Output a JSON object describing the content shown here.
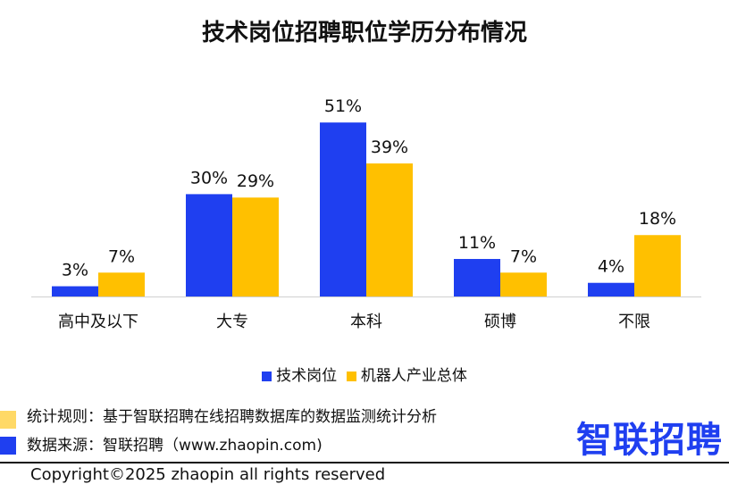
{
  "chart_data": {
    "type": "bar",
    "title": "技术岗位招聘职位学历分布情况",
    "categories": [
      "高中及以下",
      "大专",
      "本科",
      "硕博",
      "不限"
    ],
    "series": [
      {
        "name": "技术岗位",
        "values": [
          3,
          30,
          51,
          11,
          4
        ],
        "color": "#1f3ff0"
      },
      {
        "name": "机器人产业总体",
        "values": [
          7,
          29,
          39,
          7,
          18
        ],
        "color": "#ffc000"
      }
    ],
    "value_format": "percent",
    "ylim": [
      0,
      55
    ],
    "grid": false,
    "legend": "bottom"
  },
  "notes": {
    "rule": "统计规则：基于智联招聘在线招聘数据库的数据监测统计分析",
    "source": "数据来源：智联招聘（www.zhaopin.com)",
    "rule_color": "#ffd966",
    "source_color": "#1f3ff0"
  },
  "logo": "智联招聘",
  "copyright": "Copyright©2025 zhaopin all rights reserved"
}
